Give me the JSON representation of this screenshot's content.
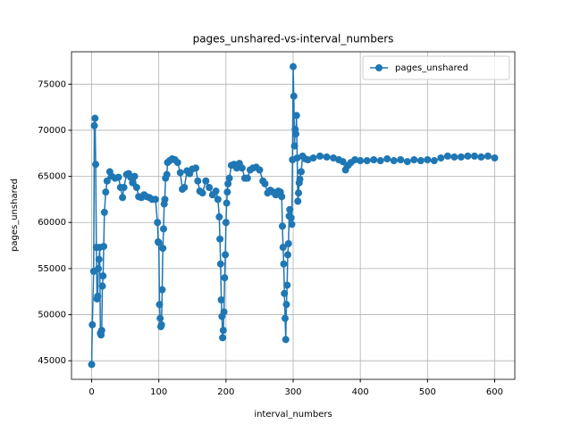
{
  "chart_data": {
    "type": "line",
    "title": "pages_unshared-vs-interval_numbers",
    "x_label": "interval_numbers",
    "y_label": "pages_unshared",
    "x": [
      0,
      1,
      3,
      4,
      5,
      6,
      7,
      8,
      9,
      10,
      11,
      12,
      13,
      14,
      15,
      16,
      17,
      18,
      19,
      21,
      23,
      27,
      30,
      35,
      40,
      43,
      46,
      48,
      52,
      55,
      58,
      61,
      64,
      67,
      70,
      74,
      78,
      82,
      86,
      90,
      95,
      98,
      99,
      100,
      101,
      102,
      103,
      104,
      105,
      106,
      107,
      108,
      109,
      110,
      112,
      113,
      116,
      120,
      124,
      128,
      132,
      135,
      138,
      142,
      146,
      150,
      155,
      158,
      161,
      165,
      170,
      175,
      180,
      185,
      188,
      190,
      191,
      192,
      193,
      194,
      195,
      196,
      197,
      198,
      199,
      200,
      201,
      202,
      203,
      205,
      208,
      212,
      216,
      220,
      224,
      228,
      232,
      236,
      240,
      245,
      250,
      255,
      258,
      262,
      266,
      270,
      274,
      278,
      281,
      283,
      284,
      285,
      286,
      287,
      288,
      289,
      290,
      291,
      292,
      293,
      294,
      295,
      297,
      298,
      299,
      300,
      301,
      302,
      303,
      304,
      305,
      306,
      307,
      308,
      309,
      310,
      312,
      314,
      318,
      322,
      330,
      340,
      350,
      360,
      368,
      374,
      378,
      382,
      386,
      392,
      400,
      410,
      420,
      430,
      440,
      450,
      460,
      470,
      480,
      490,
      500,
      510,
      520,
      530,
      540,
      550,
      560,
      570,
      580,
      590,
      600
    ],
    "series": [
      {
        "name": "pages_unshared",
        "color": "#1f77b4",
        "values": [
          44600,
          48900,
          54700,
          70500,
          71300,
          66300,
          57300,
          51700,
          52000,
          55000,
          56000,
          57300,
          48000,
          47800,
          48300,
          53100,
          54200,
          57400,
          61100,
          63300,
          64500,
          65500,
          65000,
          64800,
          64900,
          63800,
          62700,
          63800,
          65200,
          65300,
          64900,
          64300,
          65000,
          63800,
          62800,
          62700,
          63000,
          62800,
          62700,
          62500,
          62500,
          60000,
          57900,
          57800,
          51100,
          49600,
          48700,
          48900,
          52700,
          57200,
          59300,
          62000,
          62500,
          64800,
          65200,
          66500,
          66700,
          66900,
          66800,
          66500,
          65400,
          63600,
          63800,
          65600,
          65300,
          65800,
          65900,
          64500,
          63400,
          63200,
          64500,
          63800,
          63000,
          63400,
          62500,
          60600,
          58200,
          55500,
          51600,
          49800,
          47500,
          48300,
          50300,
          54000,
          56500,
          60000,
          62100,
          63300,
          64200,
          64800,
          66200,
          66300,
          65900,
          66400,
          65900,
          64800,
          64800,
          65700,
          65900,
          66000,
          65700,
          64500,
          64200,
          63200,
          63500,
          63300,
          63000,
          63400,
          63300,
          62800,
          59600,
          57300,
          55500,
          52300,
          49600,
          47300,
          51100,
          53200,
          56500,
          57700,
          60700,
          61400,
          60500,
          59800,
          66800,
          76900,
          73700,
          68300,
          70100,
          69600,
          71600,
          67000,
          62300,
          63200,
          64300,
          64700,
          65500,
          67200,
          66900,
          66800,
          67000,
          67200,
          67100,
          67000,
          66800,
          66600,
          65700,
          66200,
          66500,
          66800,
          66700,
          66700,
          66800,
          66700,
          66900,
          66700,
          66800,
          66600,
          66800,
          66700,
          66800,
          66700,
          67000,
          67200,
          67100,
          67100,
          67200,
          67200,
          67100,
          67200,
          67000
        ]
      }
    ],
    "xlim": [
      -30,
      630
    ],
    "ylim": [
      42985,
      78515
    ],
    "xticks": [
      0,
      100,
      200,
      300,
      400,
      500,
      600
    ],
    "yticks": [
      45000,
      50000,
      55000,
      60000,
      65000,
      70000,
      75000
    ],
    "grid": true,
    "legend": "upper right"
  }
}
